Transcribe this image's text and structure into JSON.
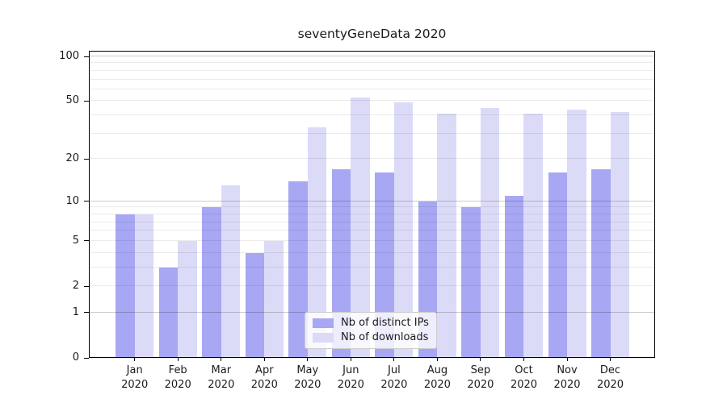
{
  "title": "seventyGeneData 2020",
  "chart_data": {
    "type": "bar",
    "title": "seventyGeneData 2020",
    "categories": [
      "Jan 2020",
      "Feb 2020",
      "Mar 2020",
      "Apr 2020",
      "May 2020",
      "Jun 2020",
      "Jul 2020",
      "Aug 2020",
      "Sep 2020",
      "Oct 2020",
      "Nov 2020",
      "Dec 2020"
    ],
    "series": [
      {
        "name": "Nb of distinct IPs",
        "color": "#a7a7f3",
        "values": [
          8,
          3,
          9,
          4,
          14,
          17,
          16,
          10,
          9,
          11,
          16,
          17
        ]
      },
      {
        "name": "Nb of downloads",
        "color": "#dbdbf8",
        "values": [
          8,
          5,
          13,
          5,
          33,
          53,
          49,
          41,
          45,
          41,
          44,
          42
        ]
      }
    ],
    "yscale": "log10(1+x)",
    "ylim": [
      0,
      109
    ],
    "y_tick_values": [
      0,
      1,
      2,
      5,
      10,
      20,
      50,
      100
    ],
    "y_tick_labels": [
      "0",
      "1",
      "2",
      "5",
      "10",
      "20",
      "50",
      "100"
    ],
    "grid_major": [
      1,
      10,
      100
    ],
    "grid_minor": [
      2,
      3,
      4,
      5,
      6,
      7,
      8,
      9,
      20,
      30,
      40,
      50,
      60,
      70,
      80,
      90
    ],
    "grid": "on",
    "legend_position": "lower center",
    "legend_labels": [
      "Nb of distinct IPs",
      "Nb of downloads"
    ]
  },
  "colors": {
    "bar_distinct_ips": "#a7a7f3",
    "bar_downloads": "#dbdbf8",
    "grid_major": "rgba(0,0,0,0.20)",
    "grid_minor": "rgba(0,0,0,0.08)",
    "spine": "#000000",
    "text": "#1a1a1a",
    "legend_border": "#cccccc",
    "legend_background": "rgba(255,255,255,0.8)"
  }
}
